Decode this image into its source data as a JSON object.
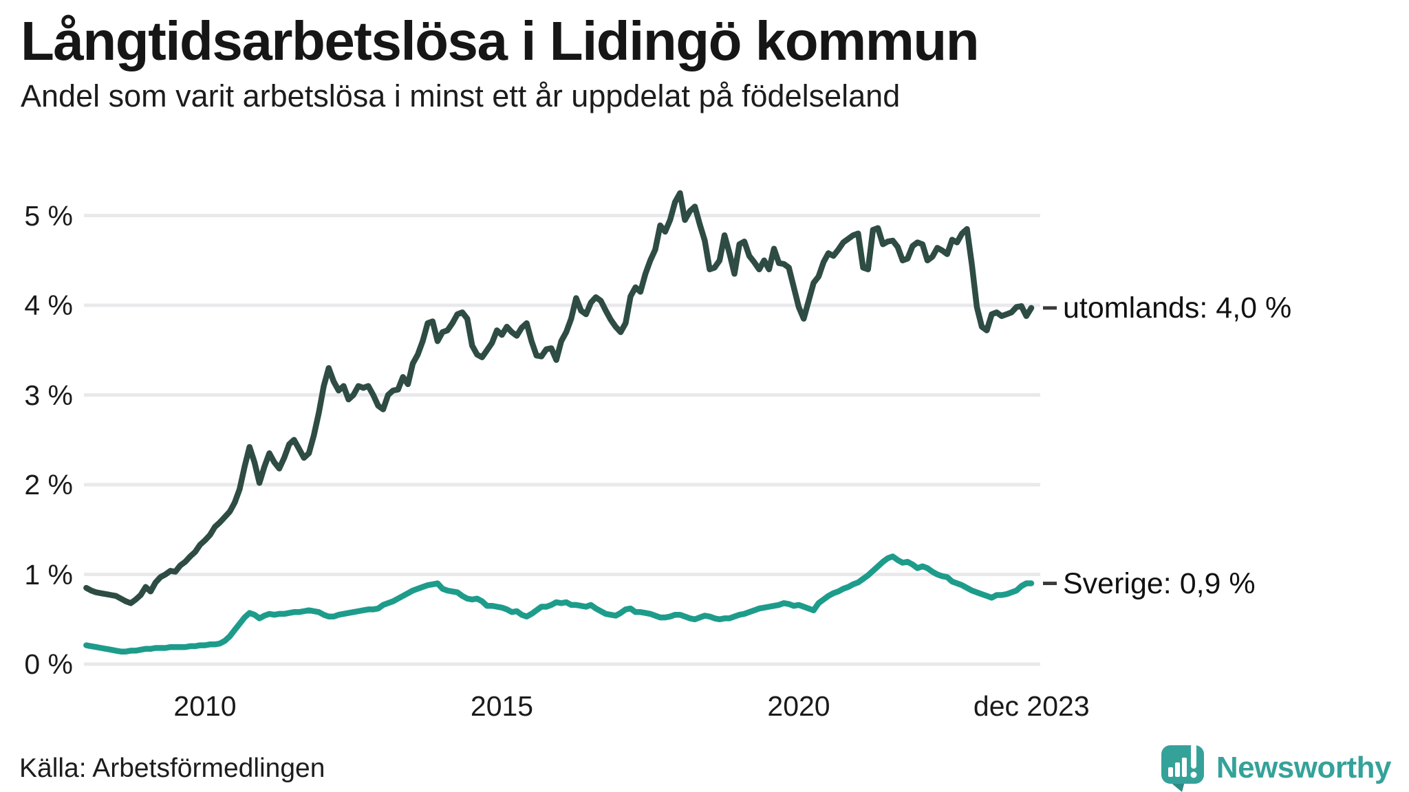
{
  "header": {
    "title": "Långtidsarbetslösa i Lidingö kommun",
    "subtitle": "Andel som varit arbetslösa i minst ett år uppdelat på födelseland"
  },
  "footer": {
    "source": "Källa: Arbetsförmedlingen",
    "brand": "Newsworthy",
    "brand_icon": "newsworthy-speech-bubble-barchart-icon"
  },
  "colors": {
    "grid": "#e9e9ec",
    "text": "#1a1a1a",
    "brand_teal": "#35a29a",
    "brand_tail": "#2b8b85",
    "series_utomlands": "#2e4c43",
    "series_sverige": "#1e9c8b",
    "leader_dash": "#3a3a3a"
  },
  "chart_data": {
    "type": "line",
    "title": "Långtidsarbetslösa i Lidingö kommun",
    "subtitle": "Andel som varit arbetslösa i minst ett år uppdelat på födelseland",
    "unit": "%",
    "grid": true,
    "legend_position": "end-of-line-labels",
    "xlim": [
      2008.0,
      2024.1
    ],
    "ylim": [
      0,
      5.4
    ],
    "x_start": 2008.0,
    "x_step": 0.0833333,
    "x_ticks": [
      {
        "t": 2010.0,
        "label": "2010"
      },
      {
        "t": 2015.0,
        "label": "2015"
      },
      {
        "t": 2020.0,
        "label": "2020"
      },
      {
        "t": 2023.92,
        "label": "dec 2023"
      }
    ],
    "y_ticks": [
      {
        "v": 0,
        "label": "0 %"
      },
      {
        "v": 1,
        "label": "1 %"
      },
      {
        "v": 2,
        "label": "2 %"
      },
      {
        "v": 3,
        "label": "3 %"
      },
      {
        "v": 4,
        "label": "4 %"
      },
      {
        "v": 5,
        "label": "5 %"
      }
    ],
    "series": [
      {
        "name": "utomlands",
        "end_label": "utomlands: 4,0 %",
        "end_value_label": "4,0 %",
        "color": "#2e4c43",
        "values": [
          0.85,
          0.82,
          0.8,
          0.79,
          0.78,
          0.77,
          0.76,
          0.73,
          0.7,
          0.68,
          0.72,
          0.77,
          0.86,
          0.81,
          0.91,
          0.97,
          1.0,
          1.04,
          1.03,
          1.1,
          1.14,
          1.2,
          1.25,
          1.33,
          1.38,
          1.44,
          1.53,
          1.58,
          1.64,
          1.7,
          1.8,
          1.95,
          2.2,
          2.42,
          2.25,
          2.02,
          2.2,
          2.35,
          2.25,
          2.18,
          2.3,
          2.45,
          2.5,
          2.4,
          2.3,
          2.35,
          2.55,
          2.8,
          3.1,
          3.3,
          3.15,
          3.05,
          3.1,
          2.95,
          3.0,
          3.1,
          3.08,
          3.1,
          3.0,
          2.88,
          2.84,
          3.0,
          3.05,
          3.06,
          3.2,
          3.12,
          3.35,
          3.45,
          3.6,
          3.8,
          3.82,
          3.6,
          3.7,
          3.72,
          3.8,
          3.9,
          3.92,
          3.85,
          3.55,
          3.45,
          3.42,
          3.5,
          3.58,
          3.72,
          3.67,
          3.76,
          3.7,
          3.66,
          3.75,
          3.8,
          3.6,
          3.44,
          3.43,
          3.51,
          3.52,
          3.39,
          3.6,
          3.7,
          3.85,
          4.08,
          3.94,
          3.9,
          4.03,
          4.09,
          4.05,
          3.94,
          3.84,
          3.76,
          3.7,
          3.8,
          4.1,
          4.2,
          4.15,
          4.35,
          4.5,
          4.62,
          4.89,
          4.82,
          4.95,
          5.15,
          5.25,
          4.95,
          5.05,
          5.1,
          4.9,
          4.72,
          4.4,
          4.42,
          4.5,
          4.78,
          4.58,
          4.35,
          4.68,
          4.71,
          4.55,
          4.48,
          4.4,
          4.5,
          4.4,
          4.63,
          4.47,
          4.46,
          4.42,
          4.2,
          3.98,
          3.85,
          4.05,
          4.25,
          4.32,
          4.48,
          4.58,
          4.55,
          4.62,
          4.7,
          4.74,
          4.78,
          4.8,
          4.42,
          4.4,
          4.84,
          4.86,
          4.68,
          4.71,
          4.72,
          4.65,
          4.5,
          4.52,
          4.66,
          4.7,
          4.68,
          4.5,
          4.54,
          4.64,
          4.61,
          4.57,
          4.73,
          4.7,
          4.8,
          4.85,
          4.45,
          3.98,
          3.76,
          3.72,
          3.9,
          3.92,
          3.88,
          3.9,
          3.92,
          3.98,
          3.99,
          3.88,
          3.97
        ]
      },
      {
        "name": "Sverige",
        "end_label": "Sverige: 0,9 %",
        "end_value_label": "0,9 %",
        "color": "#1e9c8b",
        "values": [
          0.21,
          0.2,
          0.19,
          0.18,
          0.17,
          0.16,
          0.15,
          0.14,
          0.14,
          0.15,
          0.15,
          0.16,
          0.17,
          0.17,
          0.18,
          0.18,
          0.18,
          0.19,
          0.19,
          0.19,
          0.19,
          0.2,
          0.2,
          0.21,
          0.21,
          0.22,
          0.22,
          0.23,
          0.26,
          0.31,
          0.38,
          0.45,
          0.52,
          0.57,
          0.55,
          0.51,
          0.54,
          0.56,
          0.55,
          0.56,
          0.56,
          0.57,
          0.58,
          0.58,
          0.59,
          0.6,
          0.59,
          0.58,
          0.55,
          0.53,
          0.53,
          0.55,
          0.56,
          0.57,
          0.58,
          0.59,
          0.6,
          0.61,
          0.61,
          0.62,
          0.66,
          0.68,
          0.7,
          0.73,
          0.76,
          0.79,
          0.82,
          0.84,
          0.86,
          0.88,
          0.89,
          0.9,
          0.84,
          0.82,
          0.81,
          0.8,
          0.76,
          0.73,
          0.72,
          0.73,
          0.7,
          0.65,
          0.65,
          0.64,
          0.63,
          0.61,
          0.58,
          0.59,
          0.55,
          0.53,
          0.56,
          0.6,
          0.64,
          0.64,
          0.66,
          0.69,
          0.68,
          0.69,
          0.66,
          0.66,
          0.65,
          0.64,
          0.66,
          0.62,
          0.59,
          0.56,
          0.55,
          0.54,
          0.57,
          0.61,
          0.62,
          0.58,
          0.58,
          0.57,
          0.56,
          0.54,
          0.52,
          0.52,
          0.53,
          0.55,
          0.55,
          0.53,
          0.51,
          0.5,
          0.52,
          0.54,
          0.53,
          0.51,
          0.5,
          0.51,
          0.51,
          0.53,
          0.55,
          0.56,
          0.58,
          0.6,
          0.62,
          0.63,
          0.64,
          0.65,
          0.66,
          0.68,
          0.67,
          0.65,
          0.66,
          0.64,
          0.62,
          0.6,
          0.68,
          0.72,
          0.76,
          0.79,
          0.81,
          0.84,
          0.86,
          0.89,
          0.91,
          0.95,
          0.99,
          1.04,
          1.09,
          1.14,
          1.18,
          1.2,
          1.16,
          1.13,
          1.14,
          1.11,
          1.07,
          1.09,
          1.07,
          1.03,
          1.0,
          0.98,
          0.97,
          0.92,
          0.9,
          0.88,
          0.85,
          0.82,
          0.8,
          0.78,
          0.76,
          0.74,
          0.77,
          0.77,
          0.78,
          0.8,
          0.82,
          0.87,
          0.9,
          0.9
        ]
      }
    ]
  }
}
